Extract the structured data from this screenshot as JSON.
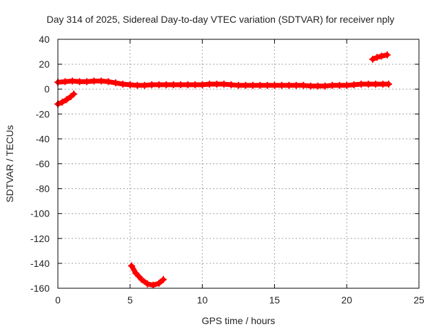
{
  "chart_data": {
    "type": "scatter",
    "title": "Day 314 of 2025, Sidereal Day-to-day VTEC variation (SDTVAR) for receiver nply",
    "xlabel": "GPS time / hours",
    "ylabel": "SDTVAR / TECUs",
    "xlim": [
      0,
      25
    ],
    "ylim": [
      -160,
      40
    ],
    "xticks": [
      0,
      5,
      10,
      15,
      20,
      25
    ],
    "yticks": [
      -160,
      -140,
      -120,
      -100,
      -80,
      -60,
      -40,
      -20,
      0,
      20,
      40
    ],
    "grid": true,
    "series": [
      {
        "color": "#ff0000",
        "marker": "plus",
        "points": [
          [
            0.0,
            5.5
          ],
          [
            0.5,
            6.0
          ],
          [
            1.0,
            6.5
          ],
          [
            1.5,
            6.0
          ],
          [
            2.0,
            6.0
          ],
          [
            2.5,
            6.5
          ],
          [
            3.0,
            6.5
          ],
          [
            3.5,
            6.0
          ],
          [
            4.0,
            5.0
          ],
          [
            4.5,
            4.0
          ],
          [
            5.0,
            3.5
          ],
          [
            5.5,
            3.0
          ],
          [
            6.0,
            3.0
          ],
          [
            6.5,
            3.5
          ],
          [
            7.0,
            3.5
          ],
          [
            7.5,
            3.5
          ],
          [
            8.0,
            3.5
          ],
          [
            8.5,
            3.5
          ],
          [
            9.0,
            3.5
          ],
          [
            9.5,
            3.5
          ],
          [
            10.0,
            3.5
          ],
          [
            10.5,
            4.0
          ],
          [
            11.0,
            4.0
          ],
          [
            11.5,
            4.0
          ],
          [
            12.0,
            3.5
          ],
          [
            12.5,
            3.0
          ],
          [
            13.0,
            3.0
          ],
          [
            13.5,
            3.0
          ],
          [
            14.0,
            3.0
          ],
          [
            14.5,
            3.0
          ],
          [
            15.0,
            3.0
          ],
          [
            15.5,
            3.0
          ],
          [
            16.0,
            3.0
          ],
          [
            16.5,
            3.0
          ],
          [
            17.0,
            3.0
          ],
          [
            17.5,
            2.5
          ],
          [
            18.0,
            2.5
          ],
          [
            18.5,
            2.5
          ],
          [
            19.0,
            3.0
          ],
          [
            19.5,
            3.0
          ],
          [
            20.0,
            3.0
          ],
          [
            20.5,
            3.5
          ],
          [
            21.0,
            4.0
          ],
          [
            21.5,
            4.0
          ],
          [
            22.0,
            4.0
          ],
          [
            22.5,
            4.0
          ],
          [
            22.9,
            4.0
          ]
        ]
      },
      {
        "color": "#ff0000",
        "marker": "plus",
        "points": [
          [
            0.0,
            -12.0
          ],
          [
            0.3,
            -10.5
          ],
          [
            0.6,
            -8.5
          ],
          [
            0.9,
            -6.0
          ],
          [
            1.1,
            -4.0
          ]
        ]
      },
      {
        "color": "#ff0000",
        "marker": "plus",
        "points": [
          [
            5.1,
            -142.0
          ],
          [
            5.4,
            -148.0
          ],
          [
            5.8,
            -153.0
          ],
          [
            6.2,
            -156.5
          ],
          [
            6.6,
            -157.5
          ],
          [
            7.0,
            -156.0
          ],
          [
            7.3,
            -153.0
          ]
        ]
      },
      {
        "color": "#ff0000",
        "marker": "plus",
        "points": [
          [
            21.8,
            24.0
          ],
          [
            22.1,
            25.5
          ],
          [
            22.4,
            26.5
          ],
          [
            22.8,
            27.5
          ]
        ]
      }
    ]
  }
}
